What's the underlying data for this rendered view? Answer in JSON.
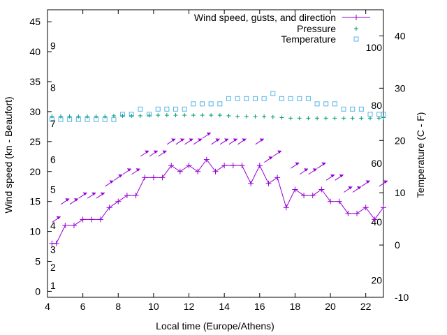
{
  "chart_data": {
    "type": "line",
    "title": "",
    "xlabel": "Local time (Europe/Athens)",
    "ylabel": "Wind speed (kn - Beaufort)",
    "y2label": "Temperature (C - F)",
    "xlim": [
      4,
      23
    ],
    "ylim": [
      -1,
      47
    ],
    "y2lim": [
      -10,
      45
    ],
    "x_ticks": [
      4,
      6,
      8,
      10,
      12,
      14,
      16,
      18,
      20,
      22
    ],
    "y_ticks": [
      0,
      5,
      10,
      15,
      20,
      25,
      30,
      35,
      40,
      45
    ],
    "y2_ticks": [
      -10,
      0,
      10,
      20,
      30,
      40
    ],
    "beaufort_labels": [
      {
        "label": "1",
        "kn": 1
      },
      {
        "label": "2",
        "kn": 4
      },
      {
        "label": "3",
        "kn": 7
      },
      {
        "label": "4",
        "kn": 11
      },
      {
        "label": "5",
        "kn": 17
      },
      {
        "label": "6",
        "kn": 22
      },
      {
        "label": "7",
        "kn": 28
      },
      {
        "label": "8",
        "kn": 34
      },
      {
        "label": "9",
        "kn": 41
      }
    ],
    "fahrenheit_labels": [
      {
        "label": "20",
        "c": -6.7
      },
      {
        "label": "40",
        "c": 4.4
      },
      {
        "label": "60",
        "c": 15.6
      },
      {
        "label": "80",
        "c": 26.7
      },
      {
        "label": "100",
        "c": 37.8
      }
    ],
    "legend_position": "top-right",
    "series": [
      {
        "name": "Wind speed, gusts, and direction",
        "axis": "y",
        "color": "#9400d3",
        "x": [
          4.25,
          4.5,
          5.0,
          5.5,
          6.0,
          6.5,
          7.0,
          7.5,
          8.0,
          8.5,
          9.0,
          9.5,
          10.0,
          10.5,
          11.0,
          11.5,
          12.0,
          12.5,
          13.0,
          13.5,
          14.0,
          14.5,
          15.0,
          15.5,
          16.0,
          16.5,
          17.0,
          17.5,
          18.0,
          18.5,
          19.0,
          19.5,
          20.0,
          20.5,
          21.0,
          21.5,
          22.0,
          22.5,
          23.0
        ],
        "values": [
          8,
          8,
          11,
          11,
          12,
          12,
          12,
          14,
          15,
          16,
          16,
          19,
          19,
          19,
          21,
          20,
          21,
          20,
          22,
          20,
          21,
          21,
          21,
          18,
          21,
          18,
          19,
          14,
          17,
          16,
          16,
          17,
          15,
          15,
          13,
          13,
          14,
          12,
          14
        ]
      },
      {
        "name": "Pressure",
        "axis": "y",
        "color": "#009e73",
        "x": [
          4.25,
          4.75,
          5.25,
          5.75,
          6.25,
          6.75,
          7.25,
          7.75,
          8.25,
          8.75,
          9.25,
          9.75,
          10.25,
          10.75,
          11.25,
          11.75,
          12.25,
          12.75,
          13.25,
          13.75,
          14.25,
          14.75,
          15.25,
          15.75,
          16.25,
          16.75,
          17.25,
          17.75,
          18.25,
          18.75,
          19.25,
          19.75,
          20.25,
          20.75,
          21.25,
          21.75,
          22.25,
          22.75,
          23.0
        ],
        "values": [
          29.2,
          29.2,
          29.2,
          29.2,
          29.2,
          29.2,
          29.2,
          29.3,
          29.3,
          29.3,
          29.3,
          29.4,
          29.4,
          29.4,
          29.4,
          29.4,
          29.4,
          29.4,
          29.4,
          29.4,
          29.3,
          29.2,
          29.2,
          29.2,
          29.2,
          29.1,
          29.0,
          28.9,
          28.9,
          28.9,
          28.9,
          28.9,
          28.9,
          28.9,
          28.9,
          28.9,
          28.9,
          28.9,
          29.0
        ]
      },
      {
        "name": "Temperature",
        "axis": "y2",
        "color": "#56b4e9",
        "x": [
          4.25,
          4.75,
          5.25,
          5.75,
          6.25,
          6.75,
          7.25,
          7.75,
          8.25,
          8.75,
          9.25,
          9.75,
          10.25,
          10.75,
          11.25,
          11.75,
          12.25,
          12.75,
          13.25,
          13.75,
          14.25,
          14.75,
          15.25,
          15.75,
          16.25,
          16.75,
          17.25,
          17.75,
          18.25,
          18.75,
          19.25,
          19.75,
          20.25,
          20.75,
          21.25,
          21.75,
          22.25,
          22.75,
          23.0
        ],
        "values": [
          24,
          24,
          24,
          24,
          24,
          24,
          24,
          24,
          25,
          25,
          26,
          25,
          26,
          26,
          26,
          26,
          27,
          27,
          27,
          27,
          28,
          28,
          28,
          28,
          28,
          29,
          28,
          28,
          28,
          28,
          27,
          27,
          27,
          26,
          26,
          26,
          25,
          25,
          25
        ]
      }
    ],
    "wind_arrows": {
      "color": "#9400d3",
      "x": [
        4.5,
        5.0,
        5.5,
        6.0,
        6.5,
        7.0,
        7.5,
        8.0,
        8.5,
        9.0,
        9.5,
        10.0,
        10.5,
        11.0,
        11.5,
        12.0,
        12.5,
        13.0,
        13.5,
        14.0,
        14.5,
        15.0,
        16.0,
        16.5,
        17.0,
        18.0,
        18.5,
        19.0,
        19.5,
        20.0,
        20.5,
        21.0,
        21.5,
        22.0,
        23.0
      ],
      "gust_kn": [
        12,
        15,
        15,
        16,
        16,
        16,
        18,
        19,
        20,
        20,
        23,
        23,
        23,
        25,
        25,
        25,
        25,
        26,
        25,
        25,
        25,
        25,
        25,
        22,
        23,
        21,
        20,
        20,
        21,
        19,
        19,
        17,
        17,
        18,
        18
      ],
      "direction": "southwest"
    }
  }
}
